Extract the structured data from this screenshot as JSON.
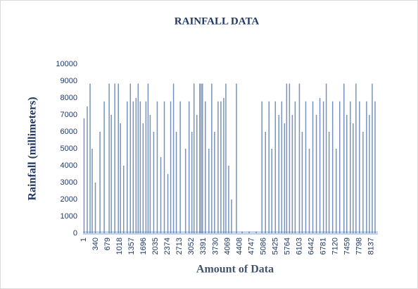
{
  "chart_data": {
    "type": "bar",
    "title": "RAINFALL DATA",
    "x_label": "Amount of Data",
    "y_label": "Rainfall (millimeters)",
    "x": [
      30,
      120,
      200,
      260,
      350,
      480,
      600,
      740,
      800,
      900,
      1000,
      1060,
      1150,
      1250,
      1340,
      1420,
      1500,
      1560,
      1620,
      1700,
      1780,
      1840,
      1900,
      2000,
      2100,
      2200,
      2300,
      2400,
      2480,
      2560,
      2640,
      2750,
      2900,
      3000,
      3080,
      3140,
      3220,
      3300,
      3340,
      3380,
      3460,
      3560,
      3640,
      3720,
      3820,
      3900,
      3980,
      4040,
      4120,
      4200,
      4340,
      4500,
      4700,
      4900,
      5060,
      5160,
      5260,
      5340,
      5440,
      5540,
      5620,
      5700,
      5760,
      5840,
      5920,
      6000,
      6120,
      6200,
      6300,
      6400,
      6500,
      6600,
      6700,
      6800,
      6880,
      6960,
      7060,
      7160,
      7260,
      7380,
      7460,
      7560,
      7640,
      7720,
      7820,
      7920,
      8020,
      8100,
      8180,
      8260
    ],
    "values": [
      6800,
      7500,
      8850,
      5000,
      3000,
      6000,
      7800,
      8850,
      7000,
      8850,
      8850,
      6500,
      4000,
      7800,
      8850,
      7800,
      8000,
      8850,
      7800,
      6500,
      7800,
      8850,
      7000,
      6000,
      7800,
      4500,
      7800,
      3500,
      7800,
      8850,
      6000,
      7800,
      5000,
      7800,
      6000,
      8850,
      7000,
      8850,
      8850,
      8850,
      7800,
      5000,
      8850,
      6000,
      7800,
      7800,
      8000,
      8850,
      4000,
      2000,
      8850,
      100,
      100,
      100,
      7800,
      6000,
      7800,
      5000,
      7800,
      7000,
      7800,
      6500,
      8850,
      8850,
      7000,
      7800,
      8850,
      6000,
      7800,
      5000,
      7800,
      7000,
      8000,
      7800,
      8850,
      6000,
      7800,
      5000,
      7800,
      8850,
      7000,
      7800,
      6500,
      8850,
      7800,
      6000,
      7800,
      7000,
      8850,
      7800
    ],
    "color": "#4a6fa5",
    "xlim": [
      1,
      8340
    ],
    "xticks": [
      1,
      340,
      679,
      1018,
      1357,
      1696,
      2035,
      2374,
      2713,
      3052,
      3391,
      3730,
      4069,
      4408,
      4747,
      5086,
      5425,
      5764,
      6103,
      6442,
      6781,
      7120,
      7459,
      7798,
      8137
    ],
    "ylim": [
      0,
      10000
    ],
    "yticks": [
      0,
      1000,
      2000,
      3000,
      4000,
      5000,
      6000,
      7000,
      8000,
      9000,
      10000
    ],
    "grid": false
  }
}
